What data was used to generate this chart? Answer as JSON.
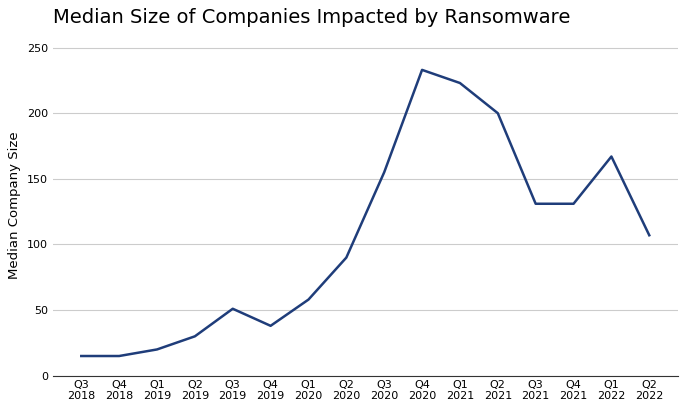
{
  "title": "Median Size of Companies Impacted by Ransomware",
  "ylabel": "Median Company Size",
  "x_labels": [
    "Q3\n2018",
    "Q4\n2018",
    "Q1\n2019",
    "Q2\n2019",
    "Q3\n2019",
    "Q4\n2019",
    "Q1\n2020",
    "Q2\n2020",
    "Q3\n2020",
    "Q4\n2020",
    "Q1\n2021",
    "Q2\n2021",
    "Q3\n2021",
    "Q4\n2021",
    "Q1\n2022",
    "Q2\n2022"
  ],
  "y_values": [
    15,
    15,
    20,
    30,
    51,
    38,
    58,
    90,
    155,
    233,
    223,
    200,
    131,
    131,
    167,
    107
  ],
  "ylim": [
    0,
    260
  ],
  "yticks": [
    0,
    50,
    100,
    150,
    200,
    250
  ],
  "line_color": "#1f3d7a",
  "line_width": 1.8,
  "bg_color": "#ffffff",
  "plot_bg_color": "#ffffff",
  "grid_color": "#cccccc",
  "grid_linewidth": 0.8,
  "bottom_spine_color": "#333333",
  "title_fontsize": 14,
  "ylabel_fontsize": 9.5,
  "tick_fontsize": 8.0
}
